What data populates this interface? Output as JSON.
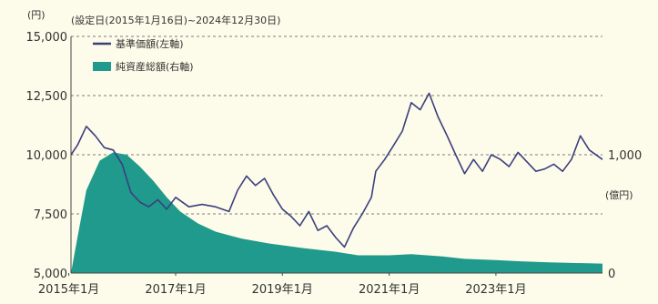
{
  "chart_data": {
    "type": "line",
    "title": "",
    "left_unit": "(円)",
    "right_unit": "(億円)",
    "period_note": "(設定日(2015年1月16日)~2024年12月30日)",
    "x_range": [
      "2015-01-16",
      "2024-12-30"
    ],
    "x_ticks": [
      {
        "date": "2015-01-01",
        "label": "2015年1月"
      },
      {
        "date": "2017-01-01",
        "label": "2017年1月"
      },
      {
        "date": "2019-01-01",
        "label": "2019年1月"
      },
      {
        "date": "2021-01-01",
        "label": "2021年1月"
      },
      {
        "date": "2023-01-01",
        "label": "2023年1月"
      }
    ],
    "y_left": {
      "range": [
        5000,
        15000
      ],
      "ticks": [
        {
          "value": 5000,
          "label": "5,000"
        },
        {
          "value": 7500,
          "label": "7,500"
        },
        {
          "value": 10000,
          "label": "10,000"
        },
        {
          "value": 12500,
          "label": "12,500"
        },
        {
          "value": 15000,
          "label": "15,000"
        }
      ]
    },
    "y_right": {
      "range": [
        0,
        2000
      ],
      "ticks": [
        {
          "value": 0,
          "label": "0"
        },
        {
          "value": 1000,
          "label": "1,000"
        }
      ]
    },
    "grid": "horizontal dashed",
    "legend_position": "top-left",
    "colors": {
      "nav": "#3b3f7e",
      "assets": "#1f9a8c",
      "grid": "#555555"
    },
    "series": [
      {
        "name": "基準価額(左軸)",
        "type": "line",
        "axis": "left",
        "points": [
          [
            "2015-01-16",
            10000
          ],
          [
            "2015-03-01",
            10400
          ],
          [
            "2015-05-01",
            11200
          ],
          [
            "2015-07-01",
            10800
          ],
          [
            "2015-09-01",
            10300
          ],
          [
            "2015-11-01",
            10200
          ],
          [
            "2016-01-01",
            9600
          ],
          [
            "2016-03-01",
            8400
          ],
          [
            "2016-05-01",
            8000
          ],
          [
            "2016-07-01",
            7800
          ],
          [
            "2016-09-01",
            8100
          ],
          [
            "2016-11-01",
            7700
          ],
          [
            "2017-01-01",
            8200
          ],
          [
            "2017-04-01",
            7800
          ],
          [
            "2017-07-01",
            7900
          ],
          [
            "2017-10-01",
            7800
          ],
          [
            "2018-01-01",
            7600
          ],
          [
            "2018-03-01",
            8500
          ],
          [
            "2018-05-01",
            9100
          ],
          [
            "2018-07-01",
            8700
          ],
          [
            "2018-09-01",
            9000
          ],
          [
            "2018-11-01",
            8300
          ],
          [
            "2019-01-01",
            7700
          ],
          [
            "2019-03-01",
            7400
          ],
          [
            "2019-05-01",
            7000
          ],
          [
            "2019-07-01",
            7600
          ],
          [
            "2019-09-01",
            6800
          ],
          [
            "2019-11-01",
            7000
          ],
          [
            "2020-01-01",
            6500
          ],
          [
            "2020-03-01",
            6100
          ],
          [
            "2020-05-01",
            6900
          ],
          [
            "2020-07-01",
            7500
          ],
          [
            "2020-09-01",
            8200
          ],
          [
            "2020-10-01",
            9300
          ],
          [
            "2020-12-01",
            9800
          ],
          [
            "2021-02-01",
            10400
          ],
          [
            "2021-04-01",
            11000
          ],
          [
            "2021-06-01",
            12200
          ],
          [
            "2021-08-01",
            11900
          ],
          [
            "2021-10-01",
            12600
          ],
          [
            "2021-12-01",
            11600
          ],
          [
            "2022-02-01",
            10800
          ],
          [
            "2022-04-01",
            10000
          ],
          [
            "2022-06-01",
            9200
          ],
          [
            "2022-08-01",
            9800
          ],
          [
            "2022-10-01",
            9300
          ],
          [
            "2022-12-01",
            10000
          ],
          [
            "2023-02-01",
            9800
          ],
          [
            "2023-04-01",
            9500
          ],
          [
            "2023-06-01",
            10100
          ],
          [
            "2023-08-01",
            9700
          ],
          [
            "2023-10-01",
            9300
          ],
          [
            "2023-12-01",
            9400
          ],
          [
            "2024-02-01",
            9600
          ],
          [
            "2024-04-01",
            9300
          ],
          [
            "2024-06-01",
            9800
          ],
          [
            "2024-08-01",
            10800
          ],
          [
            "2024-10-01",
            10200
          ],
          [
            "2024-12-30",
            9800
          ]
        ]
      },
      {
        "name": "純資産総額(右軸)",
        "type": "area",
        "axis": "right",
        "points": [
          [
            "2015-01-16",
            0
          ],
          [
            "2015-03-01",
            300
          ],
          [
            "2015-05-01",
            700
          ],
          [
            "2015-08-01",
            950
          ],
          [
            "2015-11-01",
            1020
          ],
          [
            "2016-02-01",
            1000
          ],
          [
            "2016-05-01",
            900
          ],
          [
            "2016-08-01",
            780
          ],
          [
            "2016-11-01",
            640
          ],
          [
            "2017-02-01",
            520
          ],
          [
            "2017-06-01",
            420
          ],
          [
            "2017-10-01",
            350
          ],
          [
            "2018-04-01",
            290
          ],
          [
            "2018-10-01",
            250
          ],
          [
            "2019-06-01",
            210
          ],
          [
            "2020-01-01",
            180
          ],
          [
            "2020-06-01",
            150
          ],
          [
            "2021-01-01",
            150
          ],
          [
            "2021-06-01",
            160
          ],
          [
            "2022-01-01",
            140
          ],
          [
            "2022-06-01",
            120
          ],
          [
            "2023-01-01",
            110
          ],
          [
            "2023-06-01",
            100
          ],
          [
            "2024-01-01",
            90
          ],
          [
            "2024-06-01",
            85
          ],
          [
            "2024-12-30",
            80
          ]
        ]
      }
    ]
  }
}
